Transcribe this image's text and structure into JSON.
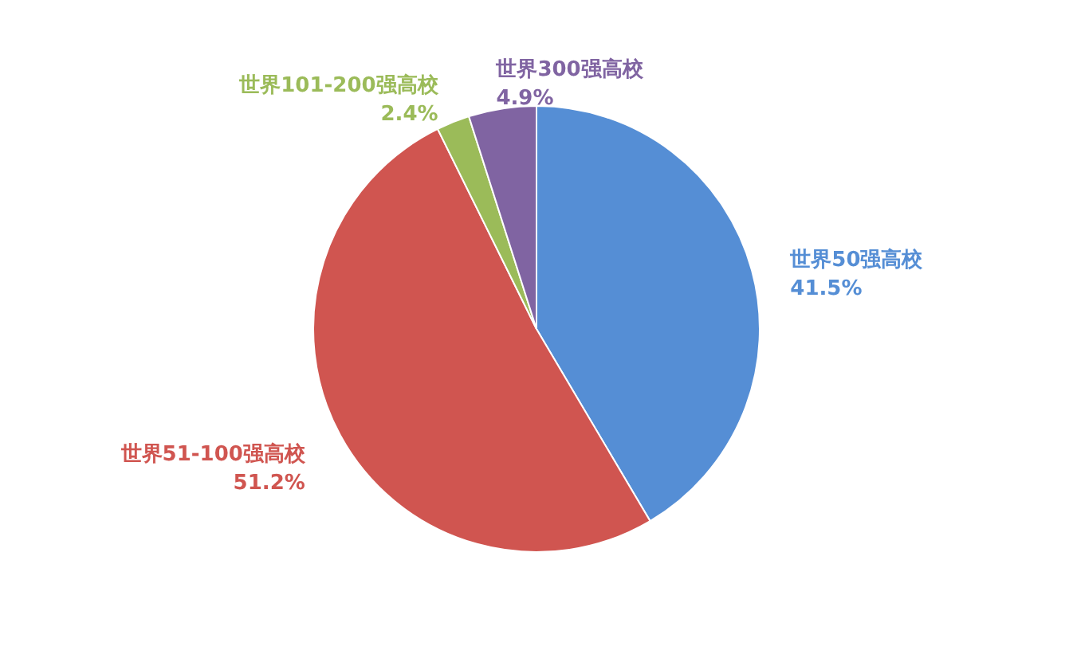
{
  "chart_data": {
    "type": "pie",
    "categories": [
      "世界50强高校",
      "世界51-100强高校",
      "世界101-200强高校",
      "世界300强高校"
    ],
    "values": [
      41.5,
      51.2,
      2.4,
      4.9
    ],
    "colors": [
      "#558ed5",
      "#d05550",
      "#9bbb59",
      "#8064a2"
    ],
    "value_labels": [
      "41.5%",
      "51.2%",
      "2.4%",
      "4.9%"
    ]
  }
}
